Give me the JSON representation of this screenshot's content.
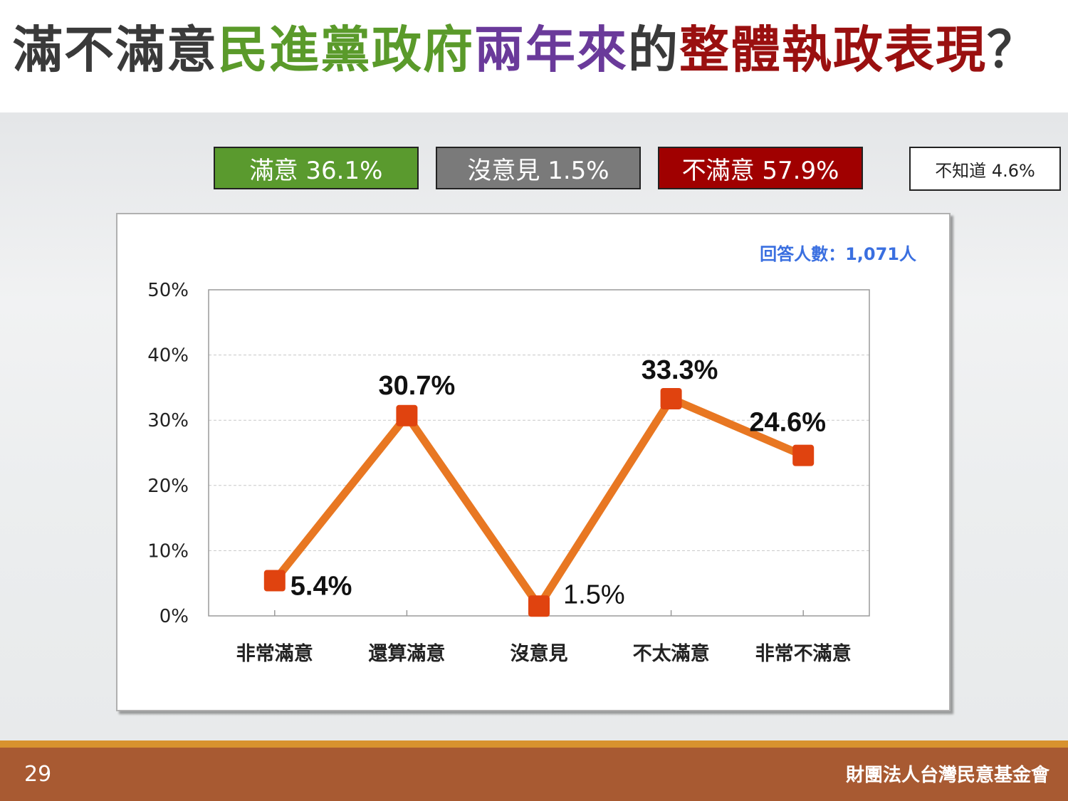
{
  "title": {
    "parts": [
      "滿不滿意",
      "民進黨政府",
      "兩年來",
      "的",
      "整體執政表現",
      "？"
    ],
    "colors": [
      "#3a3a3a",
      "#5a9a2a",
      "#6a3a9a",
      "#3a3a3a",
      "#9a1010",
      "#3a3a3a"
    ]
  },
  "summary": {
    "satisfied": "滿意 36.1%",
    "no_opinion": "沒意見 1.5%",
    "unsatisfied": "不滿意 57.9%",
    "dont_know": "不知道 4.6%"
  },
  "colors": {
    "satisfied": "#5a9a2e",
    "no_opinion": "#7a7a7a",
    "unsatisfied": "#a00000",
    "line": "#e87722",
    "marker": "#e0430f",
    "respondents": "#3a6fe0"
  },
  "respondents": "回答人數：1,071人",
  "chart_data": {
    "type": "line",
    "categories": [
      "非常滿意",
      "還算滿意",
      "沒意見",
      "不太滿意",
      "非常不滿意"
    ],
    "values": [
      5.4,
      30.7,
      1.5,
      33.3,
      24.6
    ],
    "data_labels": [
      "5.4%",
      "30.7%",
      "1.5%",
      "33.3%",
      "24.6%"
    ],
    "yticks": [
      "0%",
      "10%",
      "20%",
      "30%",
      "40%",
      "50%"
    ],
    "ylim": [
      0,
      50
    ],
    "grid": true,
    "title": "",
    "xlabel": "",
    "ylabel": ""
  },
  "footer": {
    "page_number": "29",
    "organization": "財團法人台灣民意基金會"
  }
}
